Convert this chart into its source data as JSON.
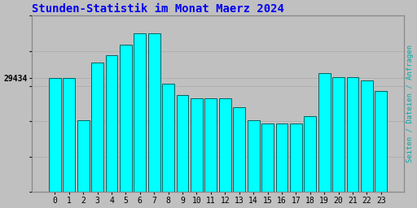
{
  "title": "Stunden-Statistik im Monat Maerz 2024",
  "title_color": "#0000ee",
  "ylabel": "Seiten / Dateien / Anfragen",
  "ylabel_color": "#00aaaa",
  "ytick_label": "29434",
  "background_color": "#c0c0c0",
  "plot_bg_color": "#c0c0c0",
  "bar_face_color": "#00ffff",
  "bar_edge_color": "#006060",
  "categories": [
    0,
    1,
    2,
    3,
    4,
    5,
    6,
    7,
    8,
    9,
    10,
    11,
    12,
    13,
    14,
    15,
    16,
    17,
    18,
    19,
    20,
    21,
    22,
    23
  ],
  "values": [
    29434,
    29434,
    29200,
    29520,
    29560,
    29620,
    29680,
    29680,
    29400,
    29340,
    29320,
    29320,
    29320,
    29270,
    29200,
    29180,
    29180,
    29180,
    29220,
    29460,
    29440,
    29440,
    29420,
    29360
  ],
  "ylim_min": 28800,
  "ylim_max": 29780,
  "title_fontsize": 10,
  "grid_color": "#aaaaaa",
  "spine_color": "#888888"
}
